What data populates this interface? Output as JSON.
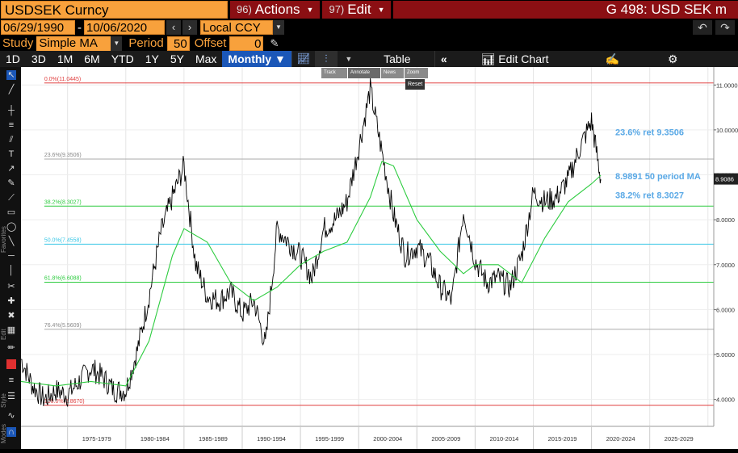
{
  "header": {
    "security": "USDSEK Curncy",
    "actions_num": "96)",
    "actions_label": "Actions",
    "edit_num": "97)",
    "edit_label": "Edit",
    "page_title": "G 498: USD SEK m"
  },
  "range": {
    "start_date": "06/29/1990",
    "separator": "-",
    "end_date": "10/06/2020",
    "currency": "Local CCY"
  },
  "study": {
    "study_label": "Study",
    "study_value": "Simple MA",
    "period_label": "Period",
    "period_value": "50",
    "offset_label": "Offset",
    "offset_value": "0"
  },
  "toolbar": {
    "ranges": [
      "1D",
      "3D",
      "1M",
      "6M",
      "YTD",
      "1Y",
      "5Y",
      "Max"
    ],
    "frequency": "Monthly",
    "table_label": "Table",
    "edit_chart_label": "Edit Chart"
  },
  "mini_panel": {
    "track": "Track",
    "annotate": "Annotate",
    "news": "News",
    "zoom": "Zoom",
    "reset": "Reset"
  },
  "side_labels": {
    "favorites": "Favorites",
    "edit": "Edit",
    "style": "Style",
    "modes": "Modes"
  },
  "chart_data": {
    "type": "line",
    "series": [
      {
        "name": "USDSEK",
        "color": "#000000",
        "x": [
          1971,
          1972,
          1973,
          1974,
          1975,
          1976,
          1977,
          1978,
          1979,
          1980,
          1981,
          1982,
          1983,
          1984,
          1985,
          1986,
          1987,
          1988,
          1989,
          1990,
          1991,
          1992,
          1993,
          1994,
          1995,
          1996,
          1997,
          1998,
          1999,
          2000,
          2001,
          2002,
          2003,
          2004,
          2005,
          2006,
          2007,
          2008,
          2009,
          2010,
          2011,
          2012,
          2013,
          2014,
          2015,
          2016,
          2017,
          2018,
          2019,
          2020,
          2020.8
        ],
        "y": [
          4.9,
          4.3,
          4.0,
          4.2,
          4.1,
          4.4,
          4.7,
          4.5,
          4.2,
          4.2,
          5.1,
          6.3,
          7.7,
          8.5,
          9.2,
          7.0,
          6.3,
          6.2,
          6.4,
          5.9,
          6.2,
          5.2,
          7.8,
          7.5,
          7.2,
          6.7,
          7.8,
          8.0,
          8.4,
          9.6,
          10.9,
          9.5,
          8.1,
          7.2,
          7.4,
          7.1,
          6.5,
          6.2,
          8.2,
          7.1,
          6.6,
          6.7,
          6.5,
          7.2,
          8.6,
          8.4,
          8.5,
          8.9,
          9.6,
          10.2,
          8.9
        ]
      },
      {
        "name": "50 period MA",
        "color": "#2ecc40",
        "x": [
          1971,
          1974,
          1977,
          1980,
          1982,
          1984,
          1985,
          1987,
          1989,
          1991,
          1993,
          1995,
          1997,
          1999,
          2001,
          2002,
          2003,
          2005,
          2007,
          2009,
          2010,
          2012,
          2014,
          2016,
          2018,
          2020,
          2020.8
        ],
        "y": [
          4.4,
          4.3,
          4.4,
          4.3,
          5.3,
          7.2,
          7.8,
          7.5,
          6.6,
          6.2,
          6.5,
          7.0,
          7.3,
          7.5,
          8.5,
          9.3,
          9.2,
          8.0,
          7.3,
          6.8,
          7.0,
          7.0,
          6.6,
          7.6,
          8.4,
          8.8,
          8.99
        ]
      }
    ],
    "retracements": [
      {
        "label": "0.0%(11.0445)",
        "value": 11.0445,
        "color": "#e04040"
      },
      {
        "label": "23.6%(9.3506)",
        "value": 9.3506,
        "color": "#aaaaaa"
      },
      {
        "label": "38.2%(8.3027)",
        "value": 8.3027,
        "color": "#2ecc40"
      },
      {
        "label": "50.0%(7.4558)",
        "value": 7.4558,
        "color": "#39c7e6"
      },
      {
        "label": "61.8%(6.6088)",
        "value": 6.6088,
        "color": "#2ecc40"
      },
      {
        "label": "76.4%(5.5609)",
        "value": 5.5609,
        "color": "#aaaaaa"
      },
      {
        "label": "100.0%(3.8670)",
        "value": 3.867,
        "color": "#e04040"
      }
    ],
    "annotations": [
      {
        "text": "23.6% ret 9.3506",
        "color": "#5aa9e6",
        "value": 9.95
      },
      {
        "text": "8.9891 50 period MA",
        "color": "#5aa9e6",
        "value": 8.97
      },
      {
        "text": "38.2% ret 8.3027",
        "color": "#5aa9e6",
        "value": 8.55
      }
    ],
    "last_price": {
      "label": "8.9086",
      "value": 8.9086
    },
    "y_ticks": [
      "4.0000",
      "5.0000",
      "6.0000",
      "7.0000",
      "8.0000",
      "9.0000",
      "10.0000",
      "11.0000"
    ],
    "y_tick_values": [
      4,
      5,
      6,
      7,
      8,
      9,
      10,
      11
    ],
    "x_ticks": [
      "1975-1979",
      "1980-1984",
      "1985-1989",
      "1990-1994",
      "1995-1999",
      "2000-2004",
      "2005-2009",
      "2010-2014",
      "2015-2019",
      "2020-2024",
      "2025-2029"
    ],
    "ylim": [
      3.4,
      11.4
    ],
    "xlim": [
      1971,
      2030.5
    ],
    "grid": true
  }
}
